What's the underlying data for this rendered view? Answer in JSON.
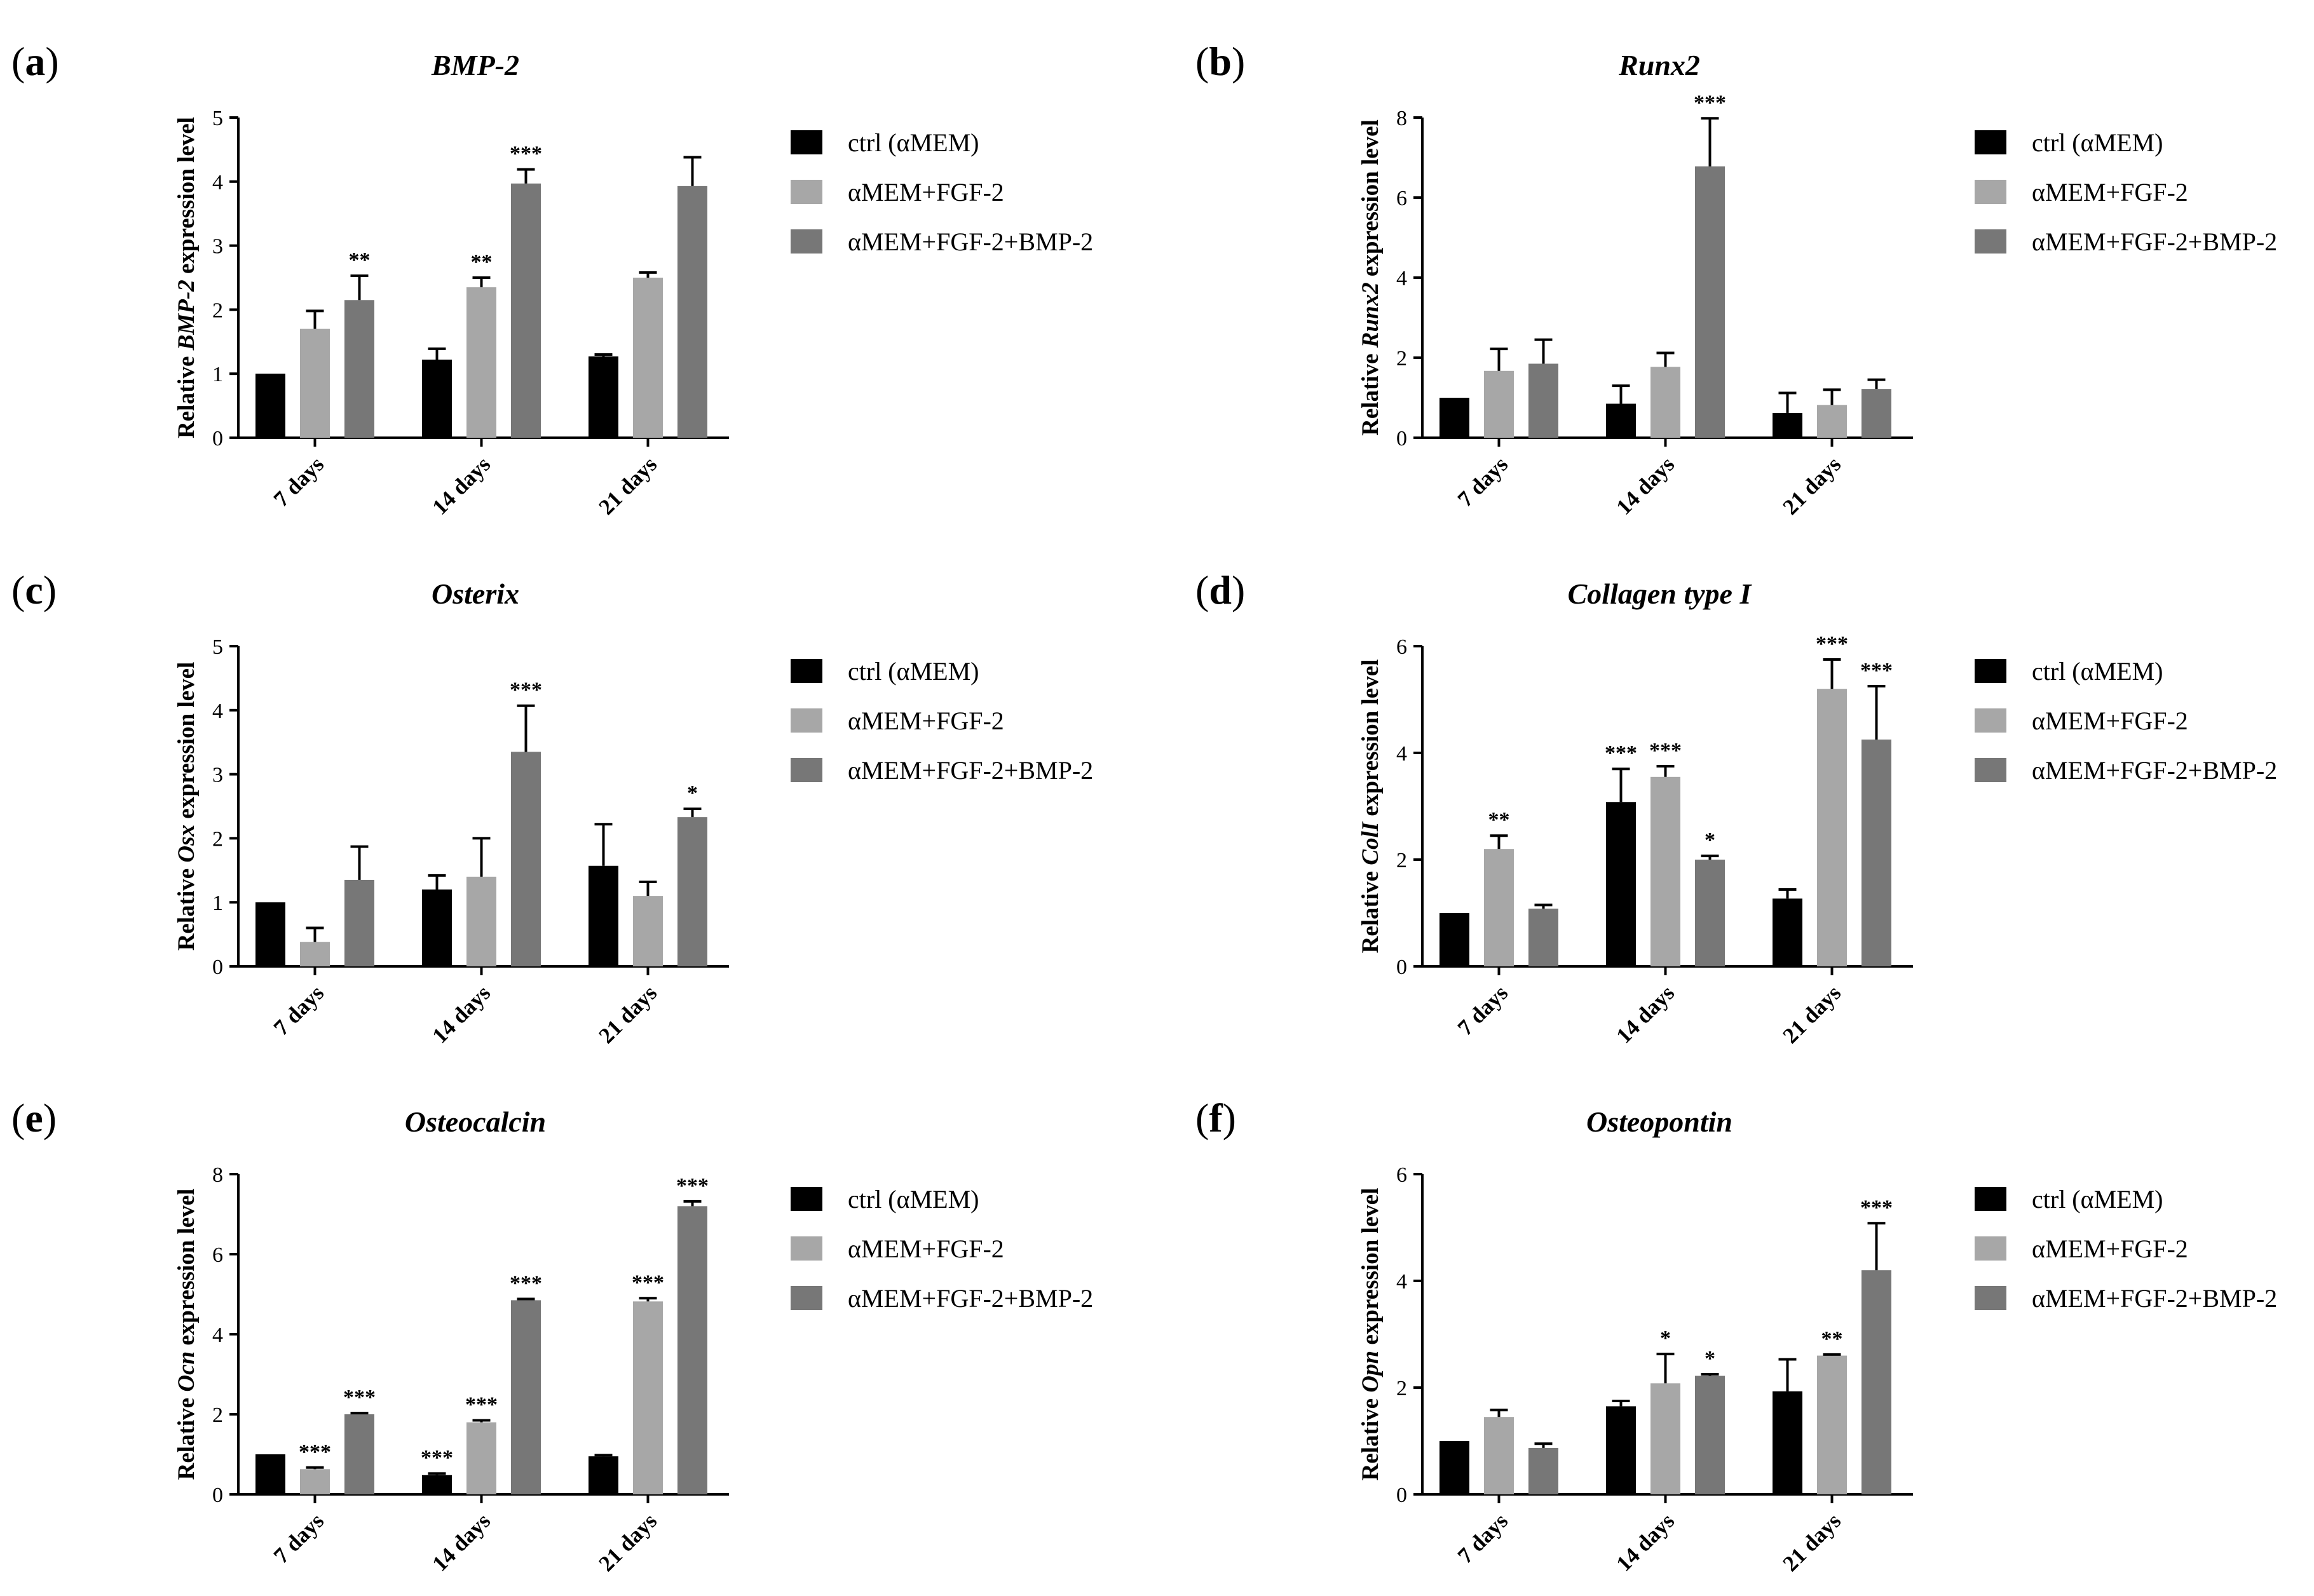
{
  "figure": {
    "colors": {
      "ctrl": "#000000",
      "fgf2": "#a7a7a7",
      "fgf2_bmp2": "#777777"
    },
    "legend": [
      "ctrl (αMEM)",
      "αMEM+FGF-2",
      "αMEM+FGF-2+BMP-2"
    ]
  },
  "chart_data": [
    {
      "panel": "a",
      "type": "bar",
      "title": "BMP-2",
      "ylabel": {
        "prefix": "Relative ",
        "gene": "BMP-2",
        "suffix": " expression level"
      },
      "categories": [
        "7 days",
        "14 days",
        "21 days"
      ],
      "ylim": [
        0,
        5
      ],
      "yticks": [
        0,
        1,
        2,
        3,
        4,
        5
      ],
      "series": [
        {
          "name": "ctrl (αMEM)",
          "values": [
            1.0,
            1.22,
            1.27
          ],
          "errors": [
            0,
            0.17,
            0.03
          ],
          "sig": [
            "",
            "",
            ""
          ]
        },
        {
          "name": "αMEM+FGF-2",
          "values": [
            1.7,
            2.35,
            2.5
          ],
          "errors": [
            0.28,
            0.15,
            0.08
          ],
          "sig": [
            "",
            "**",
            ""
          ]
        },
        {
          "name": "αMEM+FGF-2+BMP-2",
          "values": [
            2.15,
            3.97,
            3.93
          ],
          "errors": [
            0.38,
            0.22,
            0.45
          ],
          "sig": [
            "**",
            "***",
            ""
          ]
        }
      ]
    },
    {
      "panel": "b",
      "type": "bar",
      "title": "Runx2",
      "ylabel": {
        "prefix": "Relative ",
        "gene": "Runx2",
        "suffix": " expression level"
      },
      "categories": [
        "7 days",
        "14 days",
        "21 days"
      ],
      "ylim": [
        0,
        8
      ],
      "yticks": [
        0,
        2,
        4,
        6,
        8
      ],
      "series": [
        {
          "name": "ctrl (αMEM)",
          "values": [
            1.0,
            0.85,
            0.62
          ],
          "errors": [
            0,
            0.45,
            0.5
          ],
          "sig": [
            "",
            "",
            ""
          ]
        },
        {
          "name": "αMEM+FGF-2",
          "values": [
            1.67,
            1.77,
            0.82
          ],
          "errors": [
            0.55,
            0.35,
            0.38
          ],
          "sig": [
            "",
            "",
            ""
          ]
        },
        {
          "name": "αMEM+FGF-2+BMP-2",
          "values": [
            1.85,
            6.78,
            1.22
          ],
          "errors": [
            0.6,
            1.2,
            0.23
          ],
          "sig": [
            "",
            "***",
            ""
          ]
        }
      ]
    },
    {
      "panel": "c",
      "type": "bar",
      "title": "Osterix",
      "ylabel": {
        "prefix": "Relative ",
        "gene": "Osx",
        "suffix": " expression level"
      },
      "categories": [
        "7 days",
        "14 days",
        "21 days"
      ],
      "ylim": [
        0,
        5
      ],
      "yticks": [
        0,
        1,
        2,
        3,
        4,
        5
      ],
      "series": [
        {
          "name": "ctrl (αMEM)",
          "values": [
            1.0,
            1.2,
            1.57
          ],
          "errors": [
            0,
            0.22,
            0.65
          ],
          "sig": [
            "",
            "",
            ""
          ]
        },
        {
          "name": "αMEM+FGF-2",
          "values": [
            0.38,
            1.4,
            1.1
          ],
          "errors": [
            0.22,
            0.6,
            0.22
          ],
          "sig": [
            "",
            "",
            ""
          ]
        },
        {
          "name": "αMEM+FGF-2+BMP-2",
          "values": [
            1.35,
            3.35,
            2.33
          ],
          "errors": [
            0.52,
            0.72,
            0.13
          ],
          "sig": [
            "",
            "***",
            "*"
          ]
        }
      ]
    },
    {
      "panel": "d",
      "type": "bar",
      "title": "Collagen type I",
      "ylabel": {
        "prefix": "Relative ",
        "gene": "ColI",
        "suffix": " expression level"
      },
      "categories": [
        "7 days",
        "14 days",
        "21 days"
      ],
      "ylim": [
        0,
        6
      ],
      "yticks": [
        0,
        2,
        4,
        6
      ],
      "series": [
        {
          "name": "ctrl (αMEM)",
          "values": [
            1.0,
            3.08,
            1.27
          ],
          "errors": [
            0,
            0.62,
            0.17
          ],
          "sig": [
            "",
            "***",
            ""
          ]
        },
        {
          "name": "αMEM+FGF-2",
          "values": [
            2.2,
            3.55,
            5.2
          ],
          "errors": [
            0.25,
            0.2,
            0.55
          ],
          "sig": [
            "**",
            "***",
            "***"
          ]
        },
        {
          "name": "αMEM+FGF-2+BMP-2",
          "values": [
            1.08,
            2.0,
            4.25
          ],
          "errors": [
            0.07,
            0.07,
            1.0
          ],
          "sig": [
            "",
            "*",
            "***"
          ]
        }
      ]
    },
    {
      "panel": "e",
      "type": "bar",
      "title": "Osteocalcin",
      "ylabel": {
        "prefix": "Relative ",
        "gene": "Ocn",
        "suffix": " expression level"
      },
      "categories": [
        "7 days",
        "14 days",
        "21 days"
      ],
      "ylim": [
        0,
        8
      ],
      "yticks": [
        0,
        2,
        4,
        6,
        8
      ],
      "series": [
        {
          "name": "ctrl (αMEM)",
          "values": [
            1.0,
            0.48,
            0.95
          ],
          "errors": [
            0,
            0.04,
            0.03
          ],
          "sig": [
            "",
            "***",
            ""
          ]
        },
        {
          "name": "αMEM+FGF-2",
          "values": [
            0.63,
            1.8,
            4.82
          ],
          "errors": [
            0.04,
            0.05,
            0.08
          ],
          "sig": [
            "***",
            "***",
            "***"
          ]
        },
        {
          "name": "αMEM+FGF-2+BMP-2",
          "values": [
            2.0,
            4.85,
            7.2
          ],
          "errors": [
            0.03,
            0.03,
            0.12
          ],
          "sig": [
            "***",
            "***",
            "***"
          ]
        }
      ]
    },
    {
      "panel": "f",
      "type": "bar",
      "title": "Osteopontin",
      "ylabel": {
        "prefix": "Relative ",
        "gene": "Opn",
        "suffix": " expression level"
      },
      "categories": [
        "7 days",
        "14 days",
        "21 days"
      ],
      "ylim": [
        0,
        6
      ],
      "yticks": [
        0,
        2,
        4,
        6
      ],
      "series": [
        {
          "name": "ctrl (αMEM)",
          "values": [
            1.0,
            1.65,
            1.93
          ],
          "errors": [
            0,
            0.1,
            0.6
          ],
          "sig": [
            "",
            "",
            ""
          ]
        },
        {
          "name": "αMEM+FGF-2",
          "values": [
            1.45,
            2.08,
            2.6
          ],
          "errors": [
            0.13,
            0.55,
            0.02
          ],
          "sig": [
            "",
            "*",
            "**"
          ]
        },
        {
          "name": "αMEM+FGF-2+BMP-2",
          "values": [
            0.87,
            2.22,
            4.2
          ],
          "errors": [
            0.08,
            0.03,
            0.88
          ],
          "sig": [
            "",
            "*",
            "***"
          ]
        }
      ]
    }
  ]
}
